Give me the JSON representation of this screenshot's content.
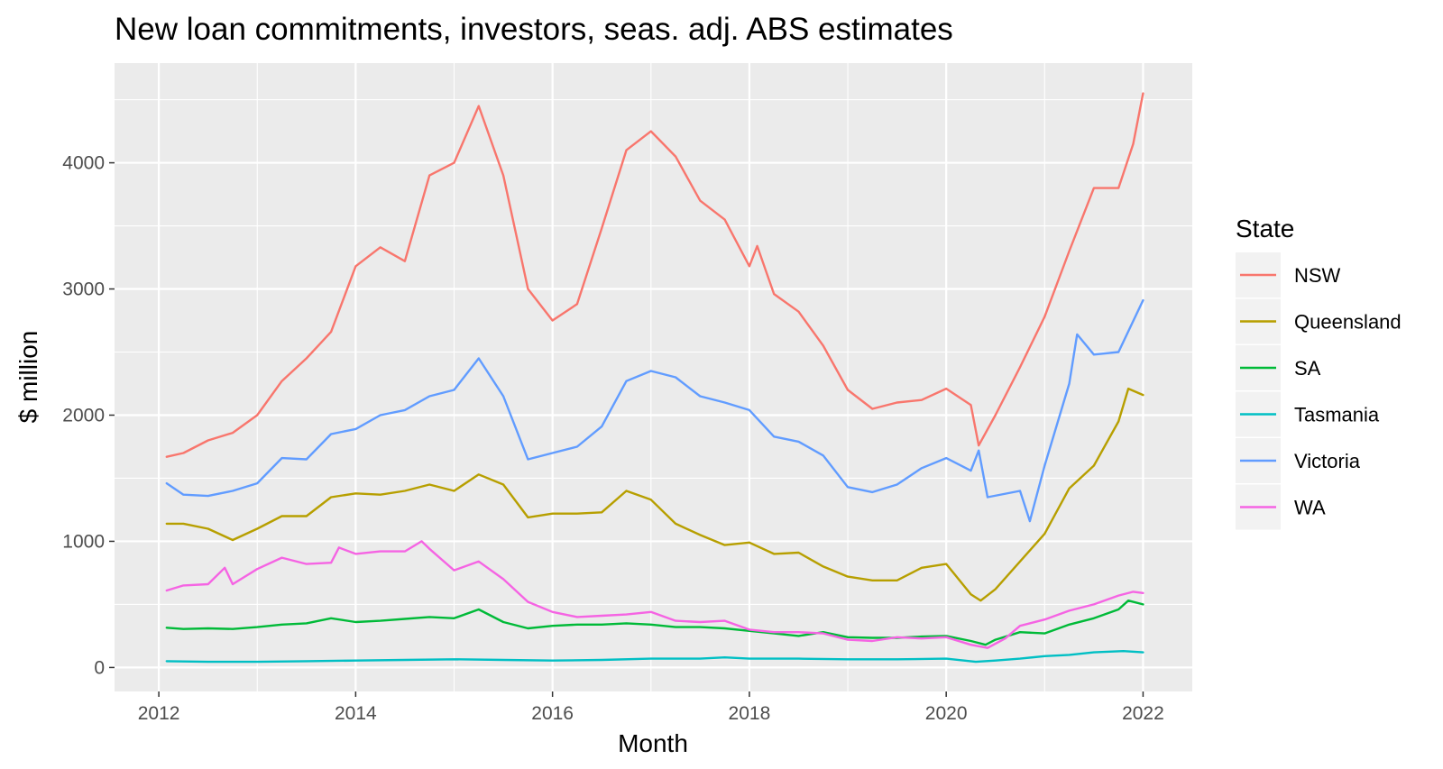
{
  "chart_data": {
    "type": "line",
    "title": "New loan commitments, investors, seas. adj. ABS estimates",
    "xlabel": "Month",
    "ylabel": "$ million",
    "xlim": [
      2011.55,
      2022.5
    ],
    "ylim": [
      -190,
      4790
    ],
    "x_ticks": [
      2012,
      2014,
      2016,
      2018,
      2020,
      2022
    ],
    "y_ticks": [
      0,
      1000,
      2000,
      3000,
      4000
    ],
    "grid": true,
    "legend": {
      "title": "State",
      "position": "right"
    },
    "series": [
      {
        "name": "NSW",
        "color": "#F8766D",
        "points": [
          [
            2012.08,
            1670
          ],
          [
            2012.25,
            1700
          ],
          [
            2012.5,
            1800
          ],
          [
            2012.75,
            1860
          ],
          [
            2013.0,
            2000
          ],
          [
            2013.25,
            2270
          ],
          [
            2013.5,
            2450
          ],
          [
            2013.75,
            2660
          ],
          [
            2014.0,
            3180
          ],
          [
            2014.25,
            3330
          ],
          [
            2014.5,
            3220
          ],
          [
            2014.75,
            3900
          ],
          [
            2015.0,
            4000
          ],
          [
            2015.25,
            4450
          ],
          [
            2015.5,
            3900
          ],
          [
            2015.75,
            3000
          ],
          [
            2016.0,
            2750
          ],
          [
            2016.25,
            2880
          ],
          [
            2016.5,
            3480
          ],
          [
            2016.75,
            4100
          ],
          [
            2017.0,
            4250
          ],
          [
            2017.25,
            4050
          ],
          [
            2017.5,
            3700
          ],
          [
            2017.75,
            3550
          ],
          [
            2018.0,
            3180
          ],
          [
            2018.08,
            3340
          ],
          [
            2018.25,
            2960
          ],
          [
            2018.5,
            2820
          ],
          [
            2018.75,
            2550
          ],
          [
            2019.0,
            2200
          ],
          [
            2019.25,
            2050
          ],
          [
            2019.5,
            2100
          ],
          [
            2019.75,
            2120
          ],
          [
            2020.0,
            2210
          ],
          [
            2020.25,
            2080
          ],
          [
            2020.33,
            1760
          ],
          [
            2020.5,
            2000
          ],
          [
            2020.75,
            2380
          ],
          [
            2021.0,
            2780
          ],
          [
            2021.25,
            3300
          ],
          [
            2021.5,
            3800
          ],
          [
            2021.75,
            3800
          ],
          [
            2021.9,
            4150
          ],
          [
            2022.0,
            4550
          ]
        ]
      },
      {
        "name": "Queensland",
        "color": "#B79F00",
        "points": [
          [
            2012.08,
            1140
          ],
          [
            2012.25,
            1140
          ],
          [
            2012.5,
            1100
          ],
          [
            2012.75,
            1010
          ],
          [
            2013.0,
            1100
          ],
          [
            2013.25,
            1200
          ],
          [
            2013.5,
            1200
          ],
          [
            2013.75,
            1350
          ],
          [
            2014.0,
            1380
          ],
          [
            2014.25,
            1370
          ],
          [
            2014.5,
            1400
          ],
          [
            2014.75,
            1450
          ],
          [
            2015.0,
            1400
          ],
          [
            2015.25,
            1530
          ],
          [
            2015.5,
            1450
          ],
          [
            2015.75,
            1190
          ],
          [
            2016.0,
            1220
          ],
          [
            2016.25,
            1220
          ],
          [
            2016.5,
            1230
          ],
          [
            2016.75,
            1400
          ],
          [
            2017.0,
            1330
          ],
          [
            2017.25,
            1140
          ],
          [
            2017.5,
            1050
          ],
          [
            2017.75,
            970
          ],
          [
            2018.0,
            990
          ],
          [
            2018.25,
            900
          ],
          [
            2018.5,
            910
          ],
          [
            2018.75,
            800
          ],
          [
            2019.0,
            720
          ],
          [
            2019.25,
            690
          ],
          [
            2019.5,
            690
          ],
          [
            2019.75,
            790
          ],
          [
            2020.0,
            820
          ],
          [
            2020.25,
            580
          ],
          [
            2020.35,
            530
          ],
          [
            2020.5,
            620
          ],
          [
            2020.75,
            840
          ],
          [
            2021.0,
            1060
          ],
          [
            2021.25,
            1420
          ],
          [
            2021.5,
            1600
          ],
          [
            2021.75,
            1950
          ],
          [
            2021.85,
            2210
          ],
          [
            2022.0,
            2160
          ]
        ]
      },
      {
        "name": "SA",
        "color": "#00BA38",
        "points": [
          [
            2012.08,
            315
          ],
          [
            2012.25,
            305
          ],
          [
            2012.5,
            310
          ],
          [
            2012.75,
            305
          ],
          [
            2013.0,
            320
          ],
          [
            2013.25,
            340
          ],
          [
            2013.5,
            350
          ],
          [
            2013.75,
            390
          ],
          [
            2014.0,
            360
          ],
          [
            2014.25,
            370
          ],
          [
            2014.5,
            385
          ],
          [
            2014.75,
            400
          ],
          [
            2015.0,
            390
          ],
          [
            2015.25,
            460
          ],
          [
            2015.5,
            360
          ],
          [
            2015.75,
            310
          ],
          [
            2016.0,
            330
          ],
          [
            2016.25,
            340
          ],
          [
            2016.5,
            340
          ],
          [
            2016.75,
            350
          ],
          [
            2017.0,
            340
          ],
          [
            2017.25,
            320
          ],
          [
            2017.5,
            320
          ],
          [
            2017.75,
            310
          ],
          [
            2018.0,
            290
          ],
          [
            2018.25,
            270
          ],
          [
            2018.5,
            250
          ],
          [
            2018.75,
            280
          ],
          [
            2019.0,
            240
          ],
          [
            2019.25,
            235
          ],
          [
            2019.5,
            235
          ],
          [
            2019.75,
            245
          ],
          [
            2020.0,
            250
          ],
          [
            2020.25,
            210
          ],
          [
            2020.4,
            180
          ],
          [
            2020.5,
            220
          ],
          [
            2020.75,
            280
          ],
          [
            2021.0,
            270
          ],
          [
            2021.25,
            340
          ],
          [
            2021.5,
            390
          ],
          [
            2021.75,
            460
          ],
          [
            2021.85,
            530
          ],
          [
            2022.0,
            500
          ]
        ]
      },
      {
        "name": "Tasmania",
        "color": "#00BFC4",
        "points": [
          [
            2012.08,
            50
          ],
          [
            2012.5,
            45
          ],
          [
            2013.0,
            45
          ],
          [
            2013.5,
            50
          ],
          [
            2014.0,
            55
          ],
          [
            2014.5,
            60
          ],
          [
            2015.0,
            65
          ],
          [
            2015.5,
            60
          ],
          [
            2016.0,
            55
          ],
          [
            2016.5,
            60
          ],
          [
            2017.0,
            70
          ],
          [
            2017.5,
            70
          ],
          [
            2017.75,
            80
          ],
          [
            2018.0,
            70
          ],
          [
            2018.5,
            70
          ],
          [
            2019.0,
            65
          ],
          [
            2019.5,
            65
          ],
          [
            2020.0,
            70
          ],
          [
            2020.3,
            45
          ],
          [
            2020.5,
            55
          ],
          [
            2020.75,
            70
          ],
          [
            2021.0,
            90
          ],
          [
            2021.25,
            100
          ],
          [
            2021.5,
            120
          ],
          [
            2021.8,
            130
          ],
          [
            2022.0,
            120
          ]
        ]
      },
      {
        "name": "Victoria",
        "color": "#619CFF",
        "points": [
          [
            2012.08,
            1460
          ],
          [
            2012.25,
            1370
          ],
          [
            2012.5,
            1360
          ],
          [
            2012.75,
            1400
          ],
          [
            2013.0,
            1460
          ],
          [
            2013.25,
            1660
          ],
          [
            2013.5,
            1650
          ],
          [
            2013.75,
            1850
          ],
          [
            2014.0,
            1890
          ],
          [
            2014.25,
            2000
          ],
          [
            2014.5,
            2040
          ],
          [
            2014.75,
            2150
          ],
          [
            2015.0,
            2200
          ],
          [
            2015.25,
            2450
          ],
          [
            2015.5,
            2150
          ],
          [
            2015.75,
            1650
          ],
          [
            2016.0,
            1700
          ],
          [
            2016.25,
            1750
          ],
          [
            2016.5,
            1910
          ],
          [
            2016.75,
            2270
          ],
          [
            2017.0,
            2350
          ],
          [
            2017.25,
            2300
          ],
          [
            2017.5,
            2150
          ],
          [
            2017.75,
            2100
          ],
          [
            2018.0,
            2040
          ],
          [
            2018.25,
            1830
          ],
          [
            2018.5,
            1790
          ],
          [
            2018.75,
            1680
          ],
          [
            2019.0,
            1430
          ],
          [
            2019.25,
            1390
          ],
          [
            2019.5,
            1450
          ],
          [
            2019.75,
            1580
          ],
          [
            2020.0,
            1660
          ],
          [
            2020.25,
            1560
          ],
          [
            2020.33,
            1720
          ],
          [
            2020.42,
            1350
          ],
          [
            2020.75,
            1400
          ],
          [
            2020.85,
            1160
          ],
          [
            2021.0,
            1600
          ],
          [
            2021.25,
            2250
          ],
          [
            2021.33,
            2640
          ],
          [
            2021.5,
            2480
          ],
          [
            2021.75,
            2500
          ],
          [
            2022.0,
            2910
          ]
        ]
      },
      {
        "name": "WA",
        "color": "#F564E3",
        "points": [
          [
            2012.08,
            610
          ],
          [
            2012.25,
            650
          ],
          [
            2012.5,
            660
          ],
          [
            2012.67,
            790
          ],
          [
            2012.75,
            660
          ],
          [
            2013.0,
            780
          ],
          [
            2013.25,
            870
          ],
          [
            2013.5,
            820
          ],
          [
            2013.75,
            830
          ],
          [
            2013.83,
            950
          ],
          [
            2014.0,
            900
          ],
          [
            2014.25,
            920
          ],
          [
            2014.5,
            920
          ],
          [
            2014.67,
            1000
          ],
          [
            2014.75,
            940
          ],
          [
            2015.0,
            770
          ],
          [
            2015.25,
            840
          ],
          [
            2015.5,
            700
          ],
          [
            2015.75,
            520
          ],
          [
            2016.0,
            440
          ],
          [
            2016.25,
            400
          ],
          [
            2016.5,
            410
          ],
          [
            2016.75,
            420
          ],
          [
            2017.0,
            440
          ],
          [
            2017.25,
            370
          ],
          [
            2017.5,
            360
          ],
          [
            2017.75,
            370
          ],
          [
            2018.0,
            300
          ],
          [
            2018.25,
            280
          ],
          [
            2018.5,
            280
          ],
          [
            2018.75,
            270
          ],
          [
            2019.0,
            220
          ],
          [
            2019.25,
            210
          ],
          [
            2019.5,
            240
          ],
          [
            2019.75,
            230
          ],
          [
            2020.0,
            240
          ],
          [
            2020.25,
            180
          ],
          [
            2020.42,
            155
          ],
          [
            2020.6,
            230
          ],
          [
            2020.75,
            330
          ],
          [
            2021.0,
            380
          ],
          [
            2021.25,
            450
          ],
          [
            2021.5,
            500
          ],
          [
            2021.75,
            570
          ],
          [
            2021.9,
            600
          ],
          [
            2022.0,
            590
          ]
        ]
      }
    ]
  }
}
